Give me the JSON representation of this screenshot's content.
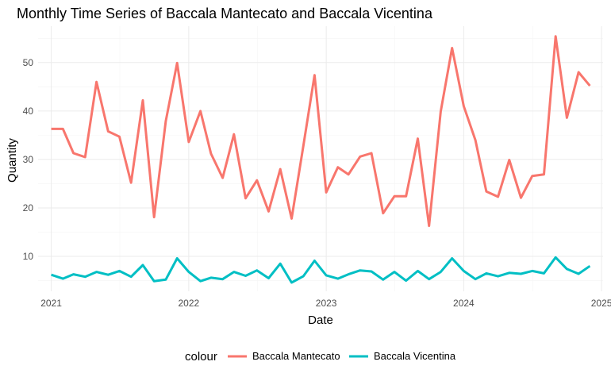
{
  "chart_data": {
    "type": "line",
    "title": "Monthly Time Series of Baccala Mantecato and Baccala Vicentina",
    "xlabel": "Date",
    "ylabel": "Quantity",
    "x_ticks": [
      "2021",
      "2022",
      "2023",
      "2024",
      "2025"
    ],
    "y_ticks": [
      10,
      20,
      30,
      40,
      50
    ],
    "xlim": [
      "2020-11-27",
      "2025-01-05"
    ],
    "ylim": [
      2.8,
      57.5
    ],
    "grid": true,
    "legend": {
      "title": "colour",
      "position": "bottom"
    },
    "x": [
      "2021-01",
      "2021-02",
      "2021-03",
      "2021-04",
      "2021-05",
      "2021-06",
      "2021-07",
      "2021-08",
      "2021-09",
      "2021-10",
      "2021-11",
      "2021-12",
      "2022-01",
      "2022-02",
      "2022-03",
      "2022-04",
      "2022-05",
      "2022-06",
      "2022-07",
      "2022-08",
      "2022-09",
      "2022-10",
      "2022-11",
      "2022-12",
      "2023-01",
      "2023-02",
      "2023-03",
      "2023-04",
      "2023-05",
      "2023-06",
      "2023-07",
      "2023-08",
      "2023-09",
      "2023-10",
      "2023-11",
      "2023-12",
      "2024-01",
      "2024-02",
      "2024-03",
      "2024-04",
      "2024-05",
      "2024-06",
      "2024-07",
      "2024-08",
      "2024-09",
      "2024-10",
      "2024-11",
      "2024-12"
    ],
    "series": [
      {
        "name": "Baccala Mantecato",
        "color": "#F8766D",
        "values": [
          36.3,
          36.3,
          31.3,
          30.5,
          46.0,
          35.8,
          34.7,
          25.2,
          42.2,
          18.1,
          37.9,
          49.9,
          33.6,
          40.0,
          31.2,
          26.2,
          35.2,
          22.0,
          25.7,
          19.3,
          28.0,
          17.8,
          32.7,
          47.4,
          23.2,
          28.4,
          26.9,
          30.6,
          31.3,
          18.9,
          22.4,
          22.4,
          34.3,
          16.3,
          39.9,
          53.0,
          41.0,
          34.0,
          23.4,
          22.3,
          29.9,
          22.1,
          26.6,
          26.9,
          55.4,
          38.6,
          48.0,
          45.2
        ]
      },
      {
        "name": "Baccala Vicentina",
        "color": "#00BFC4",
        "values": [
          6.2,
          5.4,
          6.3,
          5.8,
          6.8,
          6.2,
          7.0,
          5.8,
          8.2,
          4.9,
          5.2,
          9.6,
          6.8,
          4.9,
          5.6,
          5.3,
          6.8,
          6.0,
          7.1,
          5.5,
          8.5,
          4.6,
          5.9,
          9.1,
          6.1,
          5.4,
          6.3,
          7.1,
          6.9,
          5.2,
          6.8,
          5.0,
          7.0,
          5.3,
          6.8,
          9.6,
          7.0,
          5.3,
          6.5,
          5.9,
          6.6,
          6.4,
          7.0,
          6.5,
          9.8,
          7.4,
          6.4,
          8.0
        ]
      }
    ]
  }
}
